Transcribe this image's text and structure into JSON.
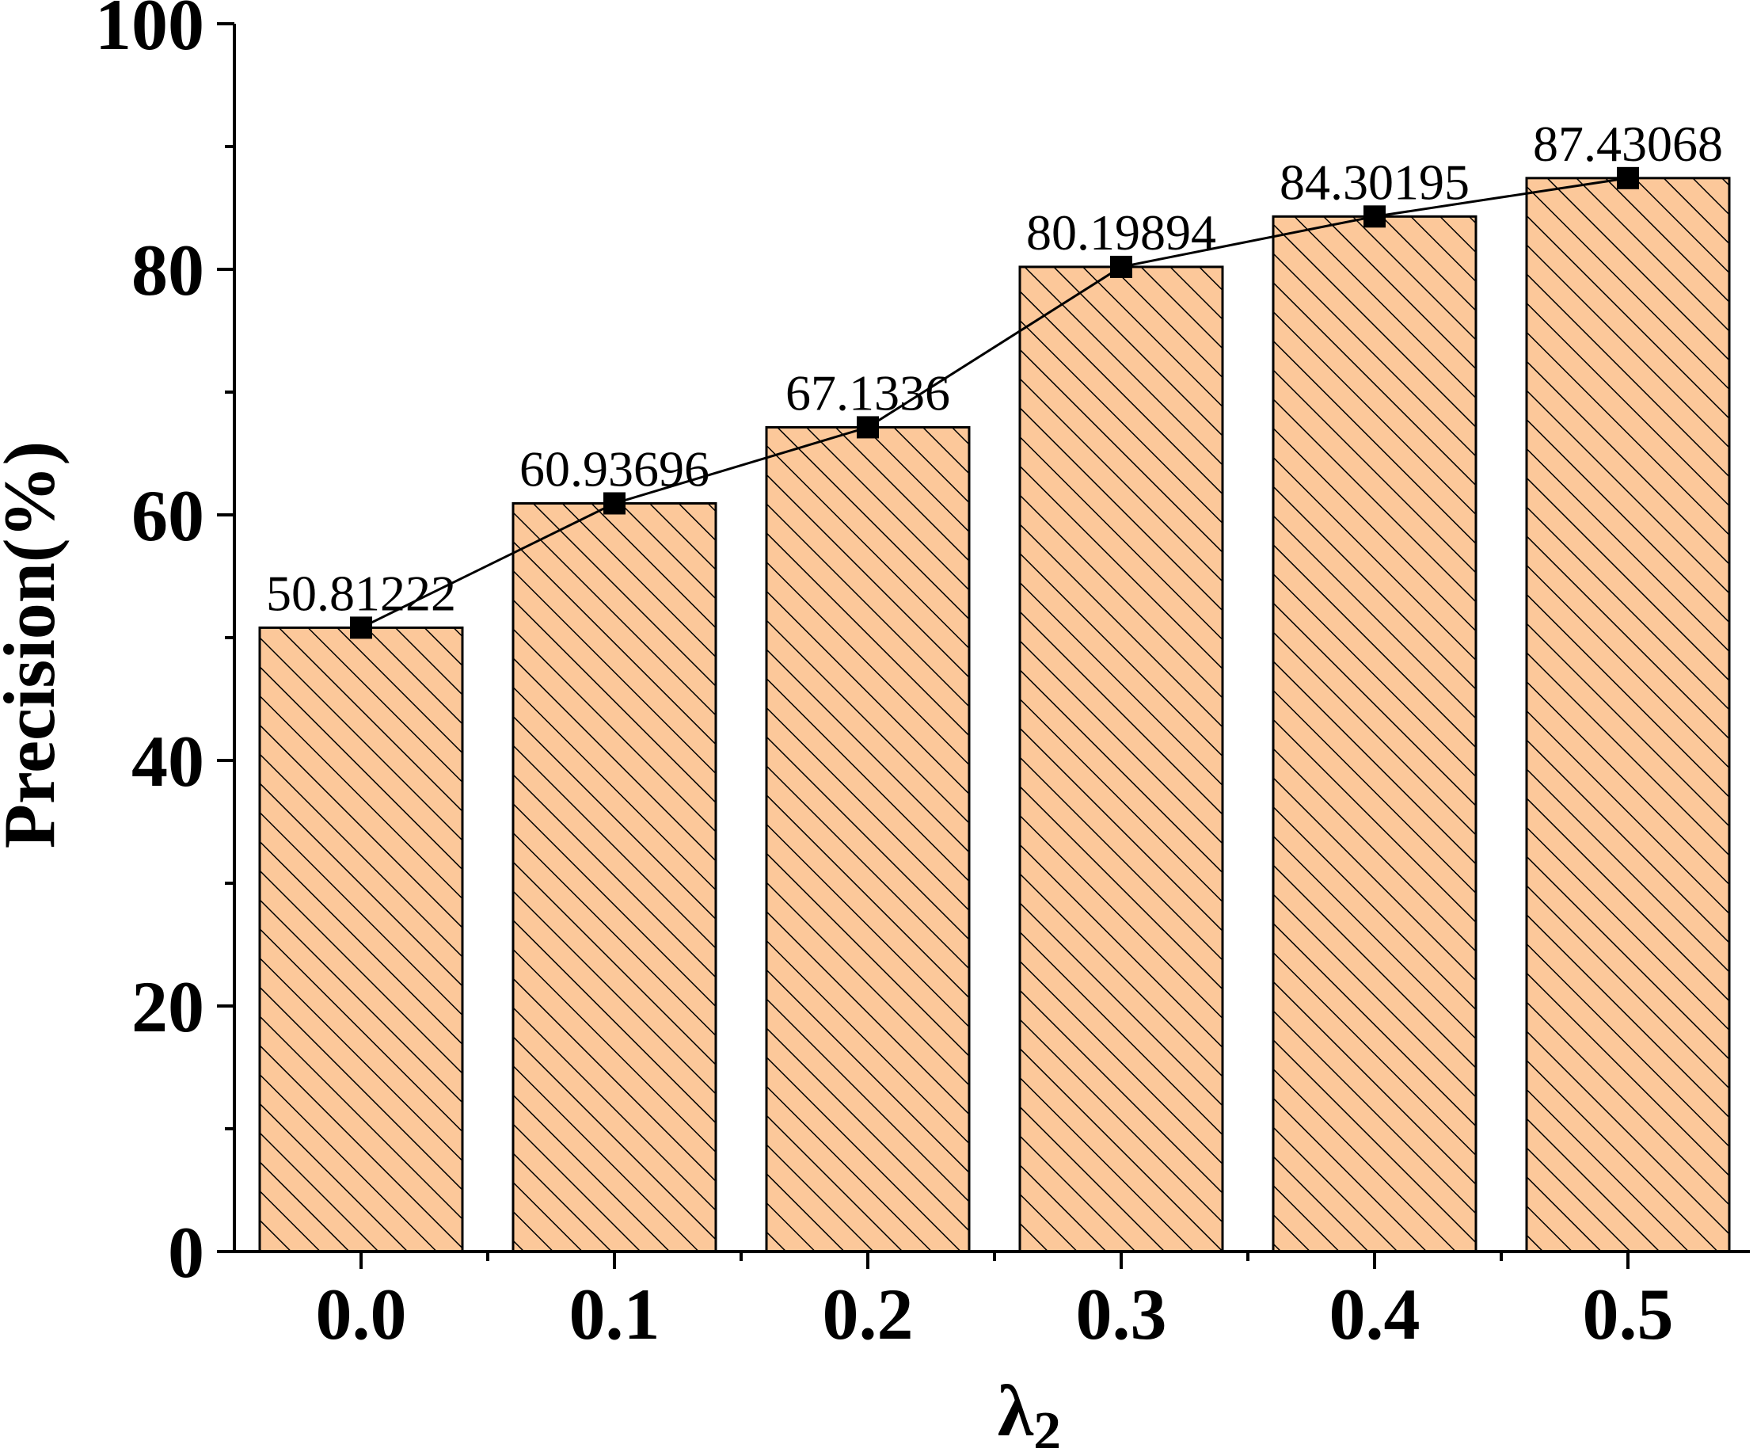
{
  "chart_data": {
    "type": "bar",
    "categories": [
      "0.0",
      "0.1",
      "0.2",
      "0.3",
      "0.4",
      "0.5"
    ],
    "values": [
      50.81222,
      60.93696,
      67.1336,
      80.19894,
      84.30195,
      87.43068
    ],
    "data_labels": [
      "50.81222",
      "60.93696",
      "67.1336",
      "80.19894",
      "84.30195",
      "87.43068"
    ],
    "overlay": "line-with-square-markers",
    "xlabel": "λ",
    "xlabel_subscript": "2",
    "ylabel": "Precision(%)",
    "ylim": [
      0,
      100
    ],
    "yticks": [
      0,
      20,
      40,
      60,
      80,
      100
    ],
    "yticks_minor_step": 10,
    "bar_fill": "#FCC89A",
    "bar_hatch_color": "#000000",
    "line_color": "#000000",
    "grid": false,
    "legend": "none"
  }
}
